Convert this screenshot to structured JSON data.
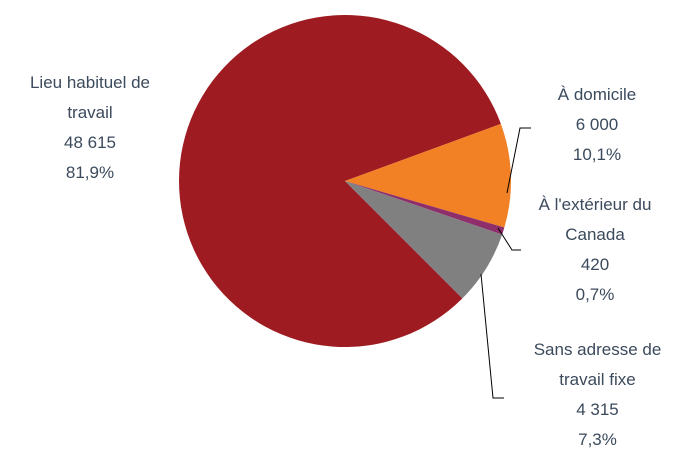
{
  "chart_data": {
    "type": "pie",
    "categories": [
      "Lieu habituel de travail",
      "À domicile",
      "À l'extérieur du Canada",
      "Sans adresse de travail fixe"
    ],
    "values": [
      48615,
      6000,
      420,
      4315
    ],
    "value_labels": [
      "48 615",
      "6 000",
      "420",
      "4 315"
    ],
    "percent_labels": [
      "81,9%",
      "10,1%",
      "0,7%",
      "7,3%"
    ],
    "colors": [
      "#9e1c21",
      "#f28024",
      "#8e2f6c",
      "#808080"
    ]
  }
}
